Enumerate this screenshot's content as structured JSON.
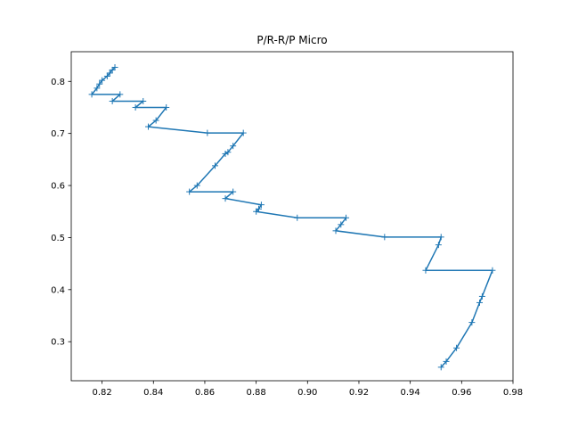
{
  "chart_data": {
    "type": "line",
    "title": "P/R-R/P Micro",
    "xlabel": "",
    "ylabel": "",
    "xlim": [
      0.808,
      0.98
    ],
    "ylim": [
      0.225,
      0.857
    ],
    "xticks": [
      0.82,
      0.84,
      0.86,
      0.88,
      0.9,
      0.92,
      0.94,
      0.96,
      0.98
    ],
    "xtick_labels": [
      "0.82",
      "0.84",
      "0.86",
      "0.88",
      "0.90",
      "0.92",
      "0.94",
      "0.96",
      "0.98"
    ],
    "yticks": [
      0.3,
      0.4,
      0.5,
      0.6,
      0.7,
      0.8
    ],
    "ytick_labels": [
      "0.3",
      "0.4",
      "0.5",
      "0.6",
      "0.7",
      "0.8"
    ],
    "grid": false,
    "marker": "+",
    "colors": {
      "line": "#1f77b4",
      "axes": "#000000",
      "background": "#ffffff"
    },
    "series": [
      {
        "x": [
          0.825,
          0.824,
          0.823,
          0.822,
          0.82,
          0.819,
          0.818,
          0.816,
          0.827,
          0.824,
          0.836,
          0.833,
          0.845,
          0.841,
          0.838,
          0.861,
          0.875,
          0.871,
          0.869,
          0.868,
          0.864,
          0.857,
          0.854,
          0.871,
          0.868,
          0.882,
          0.881,
          0.88,
          0.896,
          0.915,
          0.913,
          0.911,
          0.93,
          0.952,
          0.951,
          0.946,
          0.972,
          0.968,
          0.967,
          0.964,
          0.958,
          0.954,
          0.952
        ],
        "y": [
          0.827,
          0.822,
          0.816,
          0.81,
          0.802,
          0.795,
          0.787,
          0.775,
          0.775,
          0.762,
          0.762,
          0.75,
          0.75,
          0.725,
          0.713,
          0.701,
          0.701,
          0.676,
          0.664,
          0.661,
          0.638,
          0.6,
          0.588,
          0.588,
          0.575,
          0.563,
          0.555,
          0.55,
          0.538,
          0.538,
          0.525,
          0.513,
          0.501,
          0.501,
          0.486,
          0.437,
          0.437,
          0.387,
          0.375,
          0.337,
          0.288,
          0.262,
          0.251
        ]
      }
    ]
  }
}
